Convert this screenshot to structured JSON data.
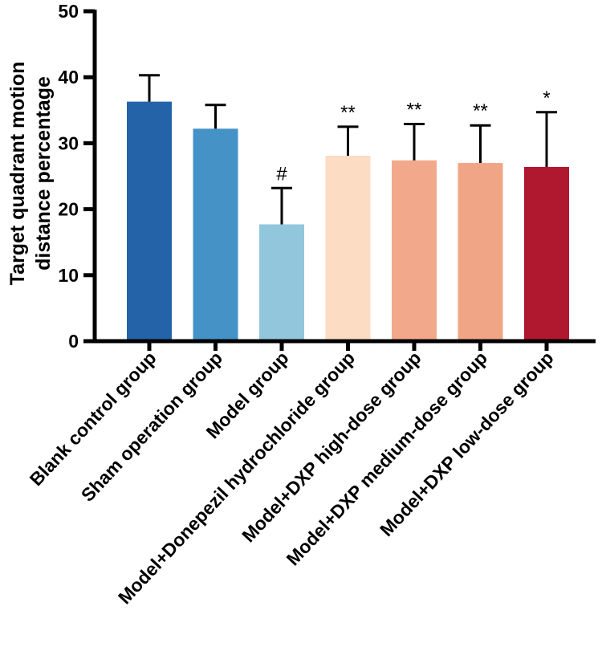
{
  "chart_data": {
    "type": "bar",
    "title": "",
    "xlabel": "",
    "ylabel_lines": [
      "Target quadrant motion",
      "distance percentage"
    ],
    "ylim": [
      0,
      50
    ],
    "yticks": [
      0,
      10,
      20,
      30,
      40,
      50
    ],
    "grid": false,
    "categories": [
      "Blank control group",
      "Sham operation group",
      "Model group",
      "Model+Donepezil hydrochloride group",
      "Model+DXP high-dose group",
      "Model+DXP medium-dose group",
      "Model+DXP low-dose group"
    ],
    "values": [
      36.3,
      32.2,
      17.7,
      28.1,
      27.4,
      27.0,
      26.4
    ],
    "errors": [
      4.0,
      3.6,
      5.5,
      4.4,
      5.5,
      5.7,
      8.3
    ],
    "significance": [
      "",
      "",
      "#",
      "**",
      "**",
      "**",
      "*"
    ],
    "colors": [
      "#2563a9",
      "#4592c7",
      "#92c6dd",
      "#fcdcc3",
      "#f2a98b",
      "#f0a686",
      "#b0182f"
    ]
  }
}
